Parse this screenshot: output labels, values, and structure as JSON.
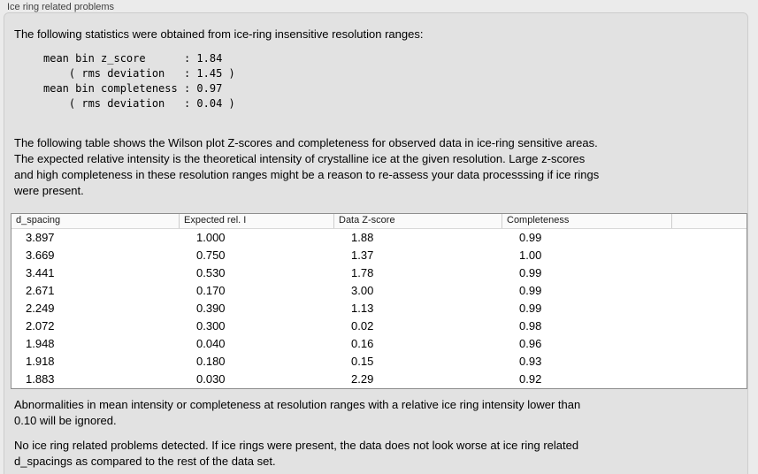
{
  "panel": {
    "title": "Ice ring related problems"
  },
  "theme": {
    "window_bg": "#ebebeb",
    "groupbox_bg": "#e2e2e2",
    "table_bg": "#ffffff",
    "table_border": "#8e8e8e"
  },
  "stats_section": {
    "intro": "The following statistics were obtained from ice-ring insensitive resolution ranges:",
    "mono_block": "mean bin z_score      : 1.84\n    ( rms deviation   : 1.45 )\nmean bin completeness : 0.97\n    ( rms deviation   : 0.04 )"
  },
  "description": "The following table shows the Wilson plot Z-scores and completeness for observed data in ice-ring sensitive areas.\nThe expected relative intensity is the theoretical intensity of crystalline ice at the given resolution. Large z-scores\nand high completeness in these resolution ranges might be a reason to re-assess your data processsing if ice rings\nwere present.",
  "ice_ring_table": {
    "columns": [
      "d_spacing",
      "Expected rel. I",
      "Data Z-score",
      "Completeness"
    ],
    "rows": [
      [
        "3.897",
        "1.000",
        "1.88",
        "0.99"
      ],
      [
        "3.669",
        "0.750",
        "1.37",
        "1.00"
      ],
      [
        "3.441",
        "0.530",
        "1.78",
        "0.99"
      ],
      [
        "2.671",
        "0.170",
        "3.00",
        "0.99"
      ],
      [
        "2.249",
        "0.390",
        "1.13",
        "0.99"
      ],
      [
        "2.072",
        "0.300",
        "0.02",
        "0.98"
      ],
      [
        "1.948",
        "0.040",
        "0.16",
        "0.96"
      ],
      [
        "1.918",
        "0.180",
        "0.15",
        "0.93"
      ],
      [
        "1.883",
        "0.030",
        "2.29",
        "0.92"
      ]
    ]
  },
  "footnote_ignore": "Abnormalities in mean intensity or completeness at resolution ranges with a relative ice ring intensity lower than\n0.10 will be ignored.",
  "conclusion": "No ice ring related problems detected. If ice rings were present, the data does not look worse at ice ring related\nd_spacings as compared to the rest of the data set."
}
